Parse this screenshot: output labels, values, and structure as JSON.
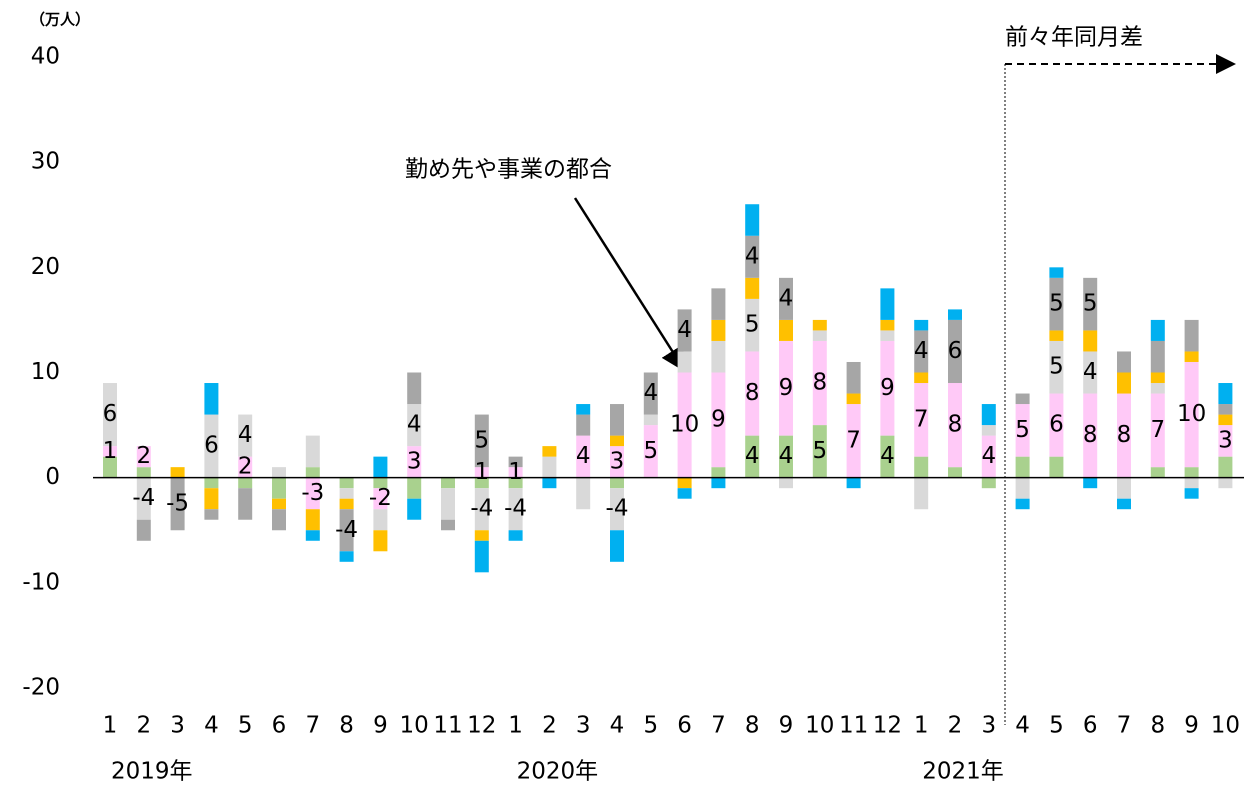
{
  "chart_data": {
    "type": "stacked_bar",
    "ylabel": "（万人）",
    "categories": [
      "1",
      "2",
      "3",
      "4",
      "5",
      "6",
      "7",
      "8",
      "9",
      "10",
      "11",
      "12",
      "1",
      "2",
      "3",
      "4",
      "5",
      "6",
      "7",
      "8",
      "9",
      "10",
      "11",
      "12",
      "1",
      "2",
      "3",
      "4",
      "5",
      "6",
      "7",
      "8",
      "9",
      "10"
    ],
    "year_labels": [
      null,
      "2019年",
      null,
      null,
      null,
      null,
      null,
      null,
      null,
      null,
      null,
      null,
      null,
      "2020年",
      null,
      null,
      null,
      null,
      null,
      null,
      null,
      null,
      null,
      null,
      null,
      "2021年",
      null,
      null,
      null,
      null,
      null,
      null,
      null,
      null
    ],
    "ylim": [
      -20,
      40
    ],
    "yticks": [
      -20,
      -10,
      0,
      10,
      20,
      30,
      40
    ],
    "grid": false,
    "series": [
      {
        "color": "#a9d18e",
        "values": [
          2,
          1,
          0,
          -1,
          -1,
          -2,
          1,
          -1,
          -1,
          -2,
          -1,
          -1,
          -1,
          0,
          0,
          -1,
          0,
          0,
          1,
          4,
          4,
          5,
          0,
          4,
          2,
          1,
          -1,
          2,
          2,
          0,
          0,
          1,
          1,
          2
        ],
        "value_labels": [
          null,
          null,
          null,
          null,
          null,
          null,
          null,
          null,
          null,
          null,
          null,
          null,
          null,
          null,
          null,
          null,
          null,
          null,
          null,
          "4",
          "4",
          "5",
          null,
          "4",
          null,
          null,
          null,
          null,
          null,
          null,
          null,
          null,
          null,
          null
        ]
      },
      {
        "color": "#ffc9f7",
        "values": [
          1,
          2,
          0,
          0,
          2,
          0,
          -3,
          0,
          -2,
          3,
          0,
          1,
          1,
          0,
          4,
          3,
          5,
          10,
          9,
          8,
          9,
          8,
          7,
          9,
          7,
          8,
          4,
          5,
          6,
          8,
          8,
          7,
          10,
          3
        ],
        "value_labels": [
          "1",
          "2",
          null,
          null,
          "2",
          null,
          "-3",
          null,
          "-2",
          "3",
          null,
          "1",
          "1",
          null,
          "4",
          "3",
          "5",
          "10",
          "9",
          "8",
          "9",
          "8",
          "7",
          "9",
          "7",
          "8",
          "4",
          "5",
          "6",
          "8",
          "8",
          "7",
          "10",
          "3"
        ]
      },
      {
        "color": "#d9d9d9",
        "values": [
          6,
          -4,
          0,
          6,
          4,
          1,
          3,
          -1,
          -2,
          4,
          -3,
          -4,
          -4,
          2,
          -3,
          -4,
          1,
          2,
          3,
          5,
          -1,
          1,
          0,
          1,
          -3,
          0,
          1,
          -2,
          5,
          4,
          -2,
          1,
          -1,
          -1
        ],
        "value_labels": [
          "6",
          "-4",
          null,
          "6",
          "4",
          null,
          null,
          null,
          null,
          "4",
          null,
          "-4",
          "-4",
          null,
          null,
          "-4",
          null,
          null,
          null,
          "5",
          null,
          null,
          null,
          null,
          null,
          null,
          null,
          null,
          "5",
          "4",
          null,
          null,
          null,
          null
        ]
      },
      {
        "color": "#ffc000",
        "values": [
          0,
          0,
          1,
          -2,
          0,
          -1,
          -2,
          -1,
          -2,
          0,
          0,
          -1,
          0,
          1,
          0,
          1,
          0,
          -1,
          2,
          2,
          2,
          1,
          1,
          1,
          1,
          0,
          0,
          0,
          1,
          2,
          2,
          1,
          1,
          1
        ],
        "value_labels": [
          null,
          null,
          null,
          null,
          null,
          null,
          null,
          null,
          null,
          null,
          null,
          null,
          null,
          null,
          null,
          null,
          null,
          null,
          null,
          null,
          null,
          null,
          null,
          null,
          null,
          null,
          null,
          null,
          null,
          null,
          null,
          null,
          null,
          null
        ]
      },
      {
        "color": "#a6a6a6",
        "values": [
          0,
          -2,
          -5,
          -1,
          -3,
          -2,
          0,
          -4,
          0,
          3,
          -1,
          5,
          1,
          0,
          2,
          3,
          4,
          4,
          3,
          4,
          4,
          0,
          3,
          0,
          4,
          6,
          0,
          1,
          5,
          5,
          2,
          3,
          3,
          1
        ],
        "value_labels": [
          null,
          null,
          "-5",
          null,
          null,
          null,
          null,
          "-4",
          null,
          null,
          null,
          "5",
          null,
          null,
          null,
          null,
          "4",
          "4",
          null,
          "4",
          "4",
          null,
          null,
          null,
          "4",
          "6",
          null,
          null,
          "5",
          "5",
          null,
          null,
          null,
          null
        ]
      },
      {
        "color": "#00b0f0",
        "values": [
          0,
          0,
          0,
          3,
          0,
          0,
          -1,
          -1,
          2,
          -2,
          0,
          -3,
          -1,
          -1,
          1,
          -3,
          0,
          -1,
          -1,
          3,
          0,
          0,
          -1,
          3,
          1,
          1,
          2,
          -1,
          1,
          -1,
          -1,
          2,
          -1,
          2
        ],
        "value_labels": [
          null,
          null,
          null,
          null,
          null,
          null,
          null,
          null,
          null,
          null,
          null,
          null,
          null,
          null,
          null,
          null,
          null,
          null,
          null,
          null,
          null,
          null,
          null,
          null,
          null,
          null,
          null,
          null,
          null,
          null,
          null,
          null,
          null,
          null
        ]
      }
    ],
    "annotations": [
      {
        "text": "勤め先や事業の都合"
      },
      {
        "text": "前々年同月差"
      }
    ]
  }
}
